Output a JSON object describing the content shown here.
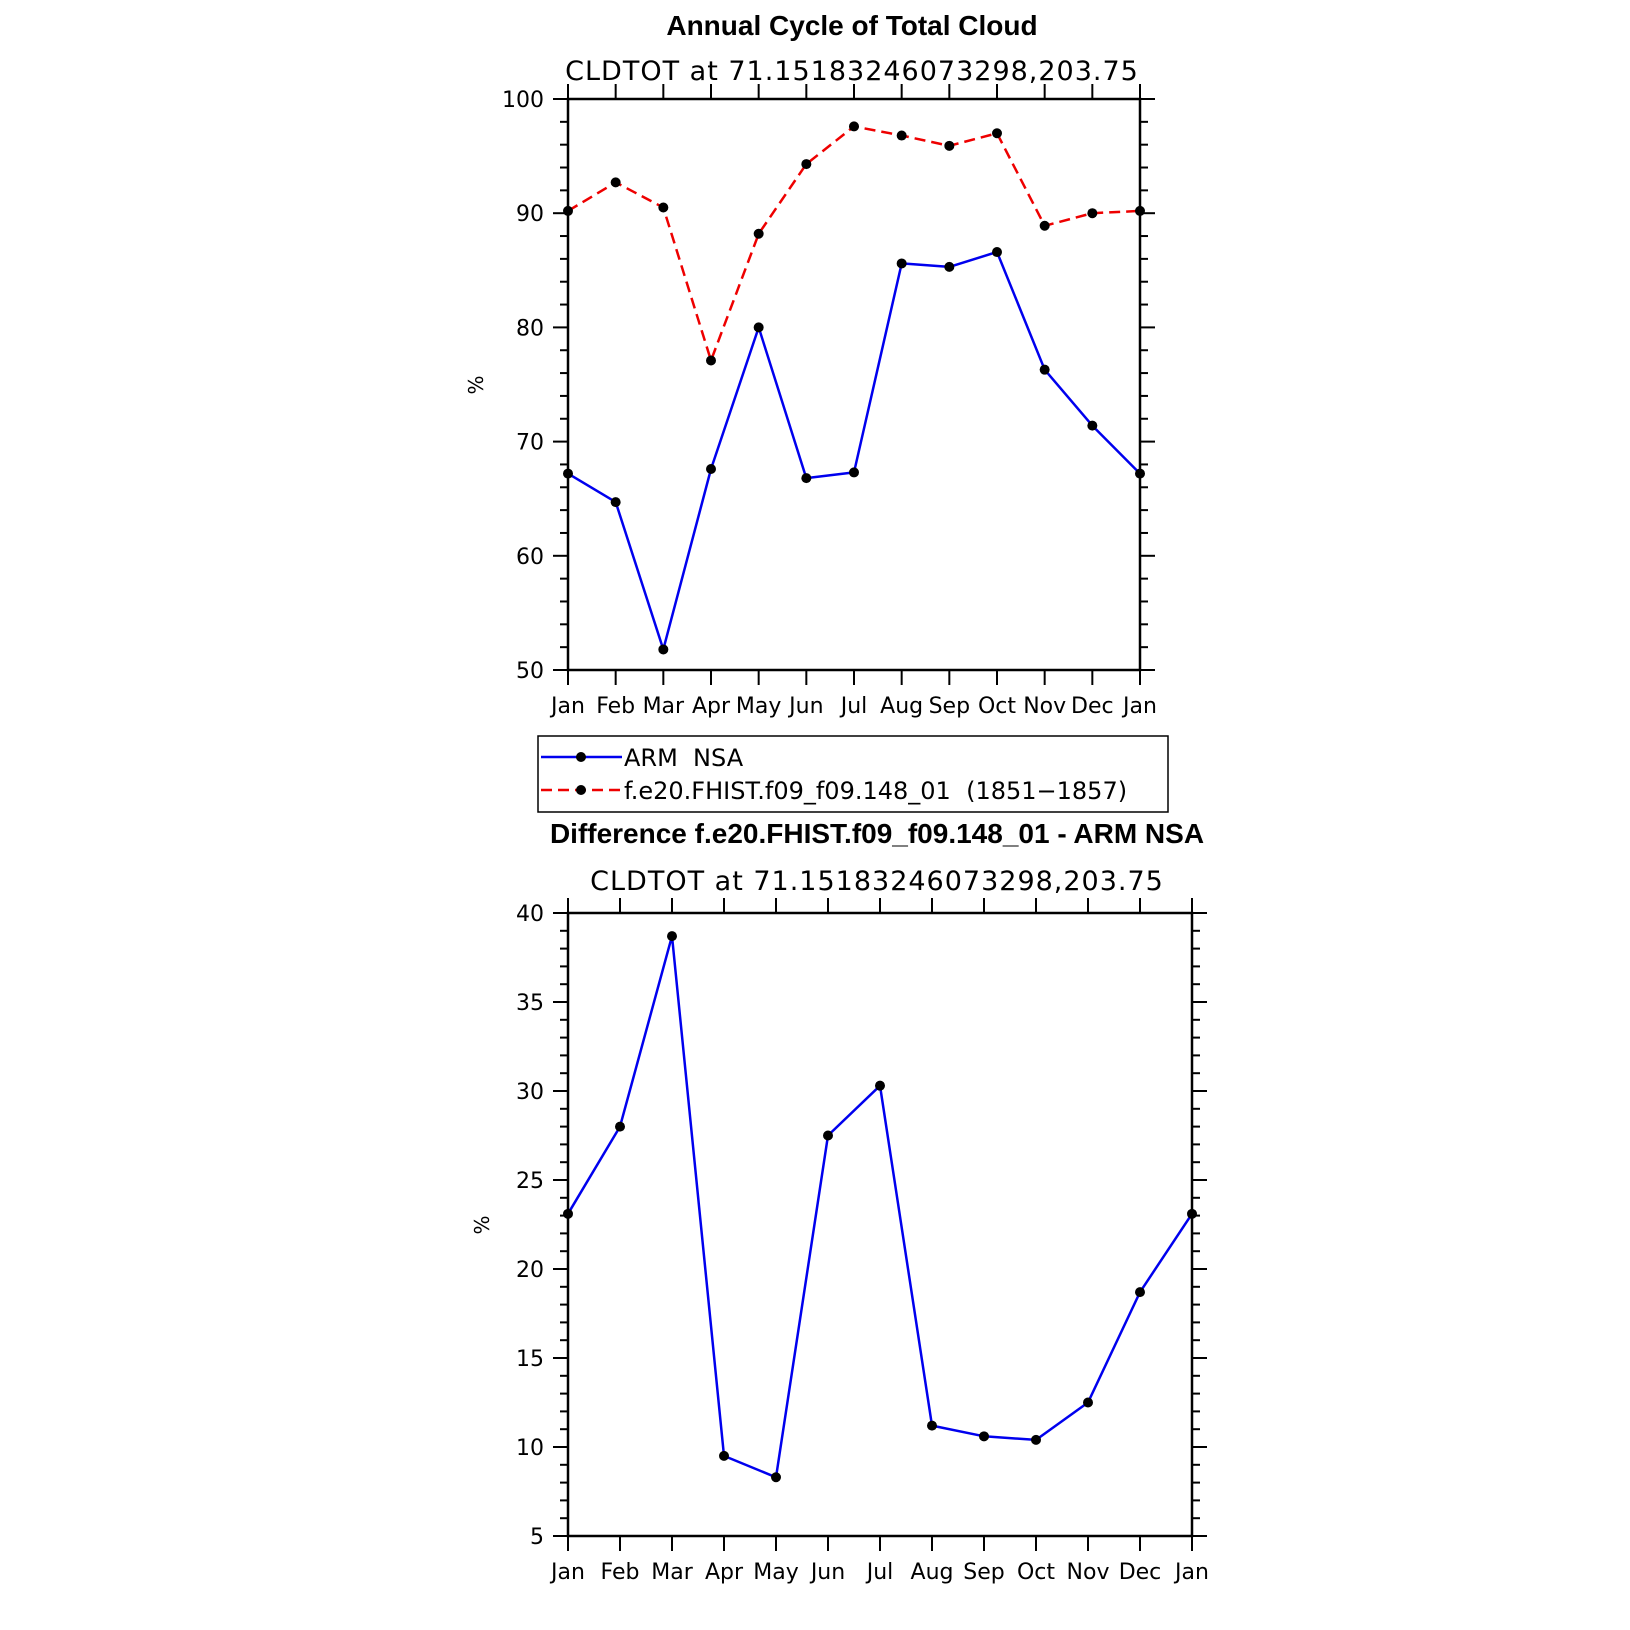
{
  "chart_data": [
    {
      "type": "line",
      "title": "Annual Cycle of Total Cloud",
      "subtitle": "CLDTOT at 71.15183246073298,203.75",
      "xlabel": "",
      "ylabel": "%",
      "categories": [
        "Jan",
        "Feb",
        "Mar",
        "Apr",
        "May",
        "Jun",
        "Jul",
        "Aug",
        "Sep",
        "Oct",
        "Nov",
        "Dec",
        "Jan"
      ],
      "ylim": [
        50,
        100
      ],
      "yticks": [
        50,
        60,
        70,
        80,
        90,
        100
      ],
      "grid": false,
      "legend": "below",
      "series": [
        {
          "name": "ARM  NSA",
          "color": "#0000ee",
          "dash": "solid",
          "values": [
            67.2,
            64.7,
            51.8,
            67.6,
            80.0,
            66.8,
            67.3,
            85.6,
            85.3,
            86.6,
            76.3,
            71.4,
            67.2
          ]
        },
        {
          "name": "f.e20.FHIST.f09_f09.148_01  (1851−1857)",
          "color": "#ee0000",
          "dash": "dashed",
          "values": [
            90.2,
            92.7,
            90.5,
            77.1,
            88.2,
            94.3,
            97.6,
            96.8,
            95.9,
            97.0,
            88.9,
            90.0,
            90.2
          ]
        }
      ]
    },
    {
      "type": "line",
      "title": "Difference f.e20.FHIST.f09_f09.148_01 - ARM NSA",
      "subtitle": "CLDTOT at 71.15183246073298,203.75",
      "xlabel": "",
      "ylabel": "%",
      "categories": [
        "Jan",
        "Feb",
        "Mar",
        "Apr",
        "May",
        "Jun",
        "Jul",
        "Aug",
        "Sep",
        "Oct",
        "Nov",
        "Dec",
        "Jan"
      ],
      "ylim": [
        5,
        40
      ],
      "yticks": [
        5,
        10,
        15,
        20,
        25,
        30,
        35,
        40
      ],
      "grid": false,
      "series": [
        {
          "color": "#0000ee",
          "dash": "solid",
          "values": [
            23.1,
            28.0,
            38.7,
            9.5,
            8.3,
            27.5,
            30.3,
            11.2,
            10.6,
            10.4,
            12.5,
            18.7,
            23.1
          ]
        }
      ]
    }
  ]
}
